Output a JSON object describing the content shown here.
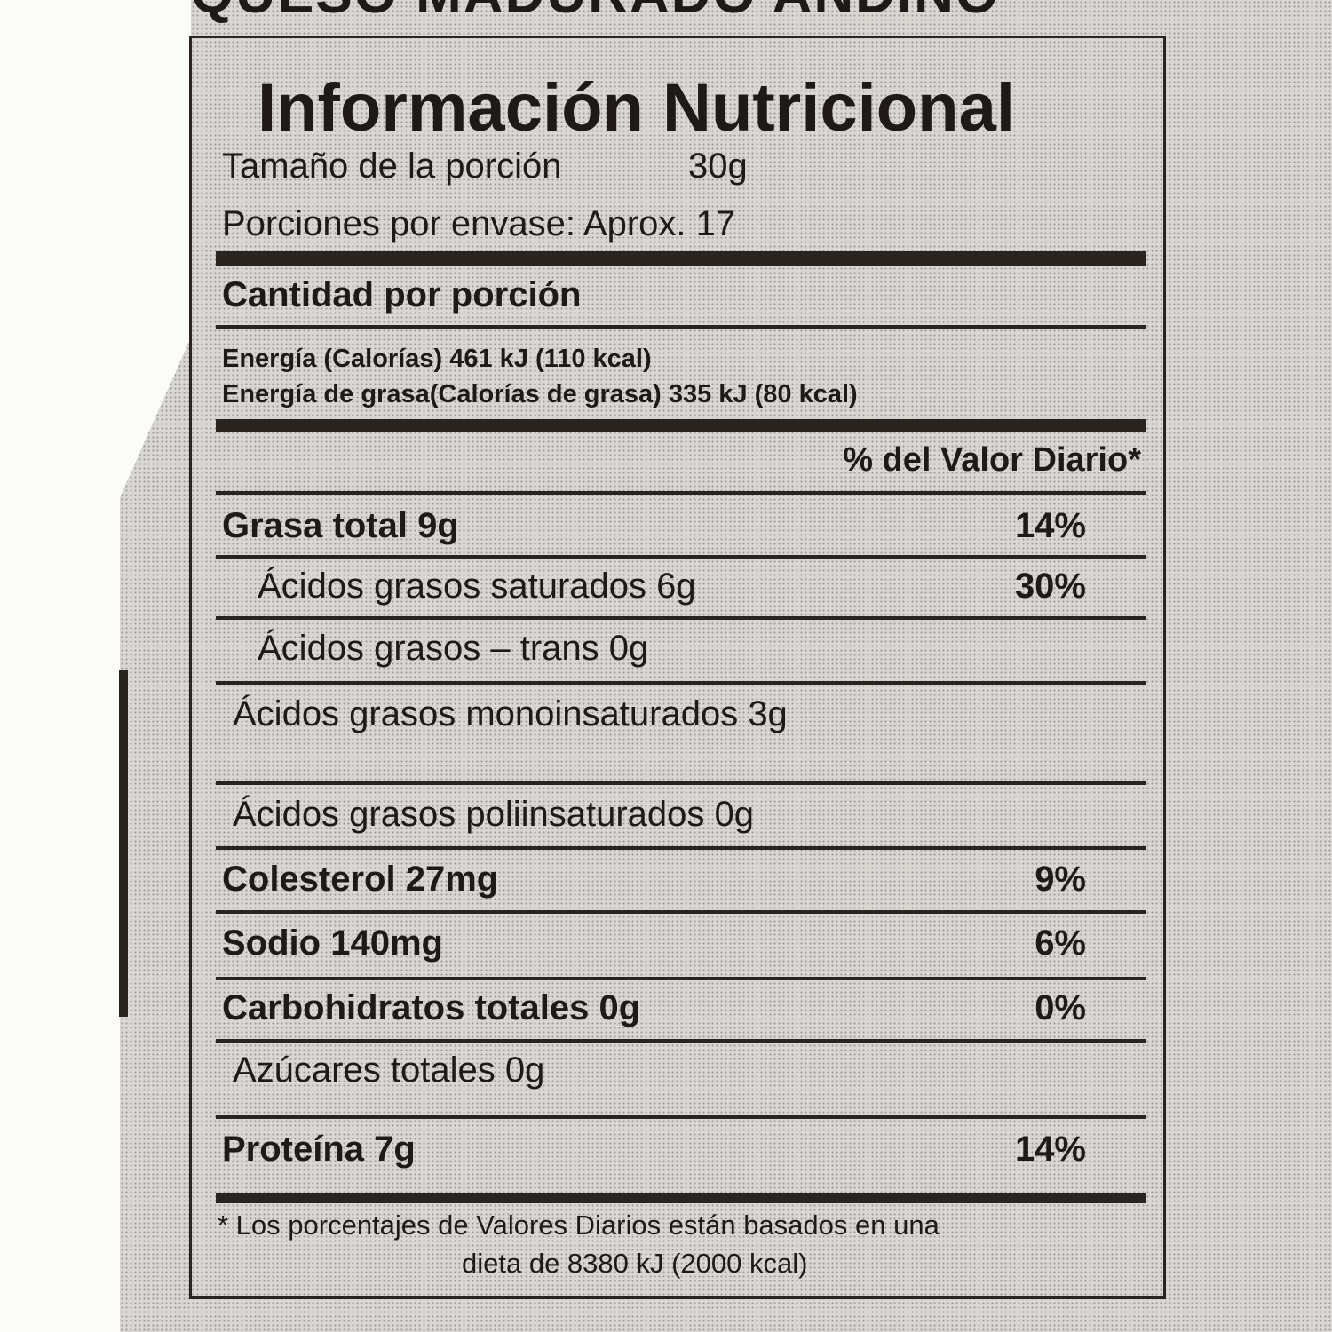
{
  "header_partial": "QUESO MADURADO ANDINO",
  "title": "Información Nutricional",
  "serving_size_label": "Tamaño de la porción",
  "serving_size_value": "30g",
  "servings": "Porciones por envase: Aprox. 17",
  "amount_per_serving": "Cantidad por porción",
  "energy": "Energía (Calorías) 461 kJ   (110 kcal)",
  "energy_fat": "Energía de grasa(Calorías de grasa) 335 kJ (80 kcal)",
  "dv_header": "% del Valor Diario*",
  "rows": [
    {
      "label": "Grasa total  9g",
      "dv": "14%"
    },
    {
      "label": "Ácidos grasos saturados 6g",
      "dv": "30%"
    },
    {
      "label": "Ácidos grasos – trans  0g",
      "dv": ""
    },
    {
      "label": "Ácidos grasos monoinsaturados 3g",
      "dv": ""
    },
    {
      "label": "Ácidos grasos poliinsaturados 0g",
      "dv": ""
    },
    {
      "label": "Colesterol  27mg",
      "dv": "9%"
    },
    {
      "label": "Sodio  140mg",
      "dv": "6%"
    },
    {
      "label": "Carbohidratos totales  0g",
      "dv": "0%"
    },
    {
      "label": "Azúcares totales 0g",
      "dv": ""
    },
    {
      "label": "Proteína  7g",
      "dv": "14%"
    }
  ],
  "footnote_1": "* Los porcentajes de Valores Diarios están basados en una",
  "footnote_2": "dieta de 8380 kJ (2000 kcal)"
}
